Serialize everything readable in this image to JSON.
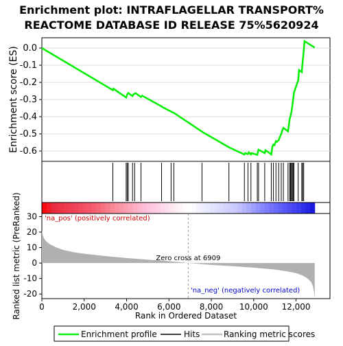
{
  "chart_data": {
    "type": "line",
    "title_line1": "Enrichment plot: INTRAFLAGELLAR TRANSPORT%",
    "title_line2": "REACTOME DATABASE ID RELEASE 75%5620924",
    "es_panel": {
      "ylabel": "Enrichment score (ES)",
      "ylim": [
        -0.66,
        0.06
      ],
      "yticks": [
        0.0,
        -0.1,
        -0.2,
        -0.3,
        -0.4,
        -0.5,
        -0.6
      ],
      "ytick_labels": [
        "0.0",
        "-0.1",
        "-0.2",
        "-0.3",
        "-0.4",
        "-0.5",
        "-0.6"
      ],
      "series": [
        {
          "name": "Enrichment profile",
          "color": "#00ee00",
          "x": [
            0,
            3350,
            3380,
            3980,
            4030,
            4080,
            4280,
            4320,
            4380,
            4430,
            4680,
            4730,
            5650,
            5680,
            6100,
            6130,
            6230,
            6260,
            7560,
            7590,
            8830,
            8860,
            9560,
            9600,
            9730,
            9770,
            9870,
            9900,
            10170,
            10200,
            10230,
            10520,
            10560,
            10830,
            10880,
            10930,
            10980,
            11050,
            11100,
            11180,
            11230,
            11300,
            11350,
            11400,
            11620,
            11660,
            11700,
            11740,
            11780,
            11820,
            11860,
            11900,
            12100,
            12140,
            12270,
            12310,
            12360,
            12400,
            12880
          ],
          "y": [
            0.0,
            -0.245,
            -0.237,
            -0.288,
            -0.27,
            -0.262,
            -0.28,
            -0.27,
            -0.266,
            -0.263,
            -0.285,
            -0.277,
            -0.34,
            -0.343,
            -0.37,
            -0.372,
            -0.378,
            -0.38,
            -0.487,
            -0.49,
            -0.578,
            -0.58,
            -0.62,
            -0.612,
            -0.617,
            -0.608,
            -0.62,
            -0.612,
            -0.622,
            -0.605,
            -0.592,
            -0.612,
            -0.595,
            -0.62,
            -0.575,
            -0.562,
            -0.566,
            -0.542,
            -0.546,
            -0.536,
            -0.52,
            -0.5,
            -0.48,
            -0.465,
            -0.485,
            -0.448,
            -0.413,
            -0.394,
            -0.373,
            -0.34,
            -0.3,
            -0.26,
            -0.188,
            -0.128,
            -0.14,
            -0.08,
            -0.02,
            0.04,
            0.003
          ]
        }
      ]
    },
    "hits": [
      3350,
      3980,
      4030,
      4080,
      4280,
      4380,
      4680,
      5650,
      6100,
      6230,
      7560,
      8830,
      9560,
      9730,
      9870,
      10170,
      10230,
      10520,
      10830,
      10930,
      11050,
      11180,
      11300,
      11400,
      11620,
      11700,
      11740,
      11780,
      11820,
      11860,
      11900,
      12100,
      12270,
      12310,
      12360
    ],
    "metric_panel": {
      "ylabel": "Ranked list metric (PreRanked)",
      "ylim": [
        -23,
        32
      ],
      "yticks": [
        30,
        20,
        10,
        0,
        -10,
        -20
      ],
      "ytick_labels": [
        "30",
        "20",
        "10",
        "0",
        "-10",
        "-20"
      ],
      "xlabel": "Rank in Ordered Dataset",
      "xlim": [
        0,
        13600
      ],
      "xticks": [
        0,
        2000,
        4000,
        6000,
        8000,
        10000,
        12000
      ],
      "xtick_labels": [
        "0",
        "2,000",
        "4,000",
        "6,000",
        "8,000",
        "10,000",
        "12,000"
      ],
      "zero_cross": 6909,
      "zero_cross_label": "Zero cross at 6909",
      "pos_label": "'na_pos' (positively correlated)",
      "neg_label": "'na_neg' (negatively correlated)",
      "pos_color": "#ff0000",
      "neg_color": "#0000ff",
      "fill_color": "#b0b0b0",
      "profile_x": [
        0,
        50,
        100,
        200,
        400,
        700,
        1000,
        1500,
        2000,
        3000,
        4000,
        5000,
        6000,
        6909,
        8000,
        9000,
        10000,
        11000,
        11500,
        12000,
        12300,
        12500,
        12700,
        12800,
        12850,
        12880
      ],
      "profile_y": [
        21,
        18,
        16,
        14,
        12,
        10,
        8.5,
        7,
        6,
        4.5,
        3.2,
        2.2,
        1.2,
        0,
        -1.2,
        -2,
        -3,
        -4.2,
        -5.2,
        -6.5,
        -8,
        -9.5,
        -12,
        -15,
        -19,
        -23
      ]
    },
    "n_genes": 12880,
    "legend": {
      "items": [
        {
          "label": "Enrichment profile",
          "color": "#00ee00"
        },
        {
          "label": "Hits",
          "color": "#000000"
        },
        {
          "label": "Ranking metric scores",
          "color": "#c0c0c0"
        }
      ]
    }
  }
}
